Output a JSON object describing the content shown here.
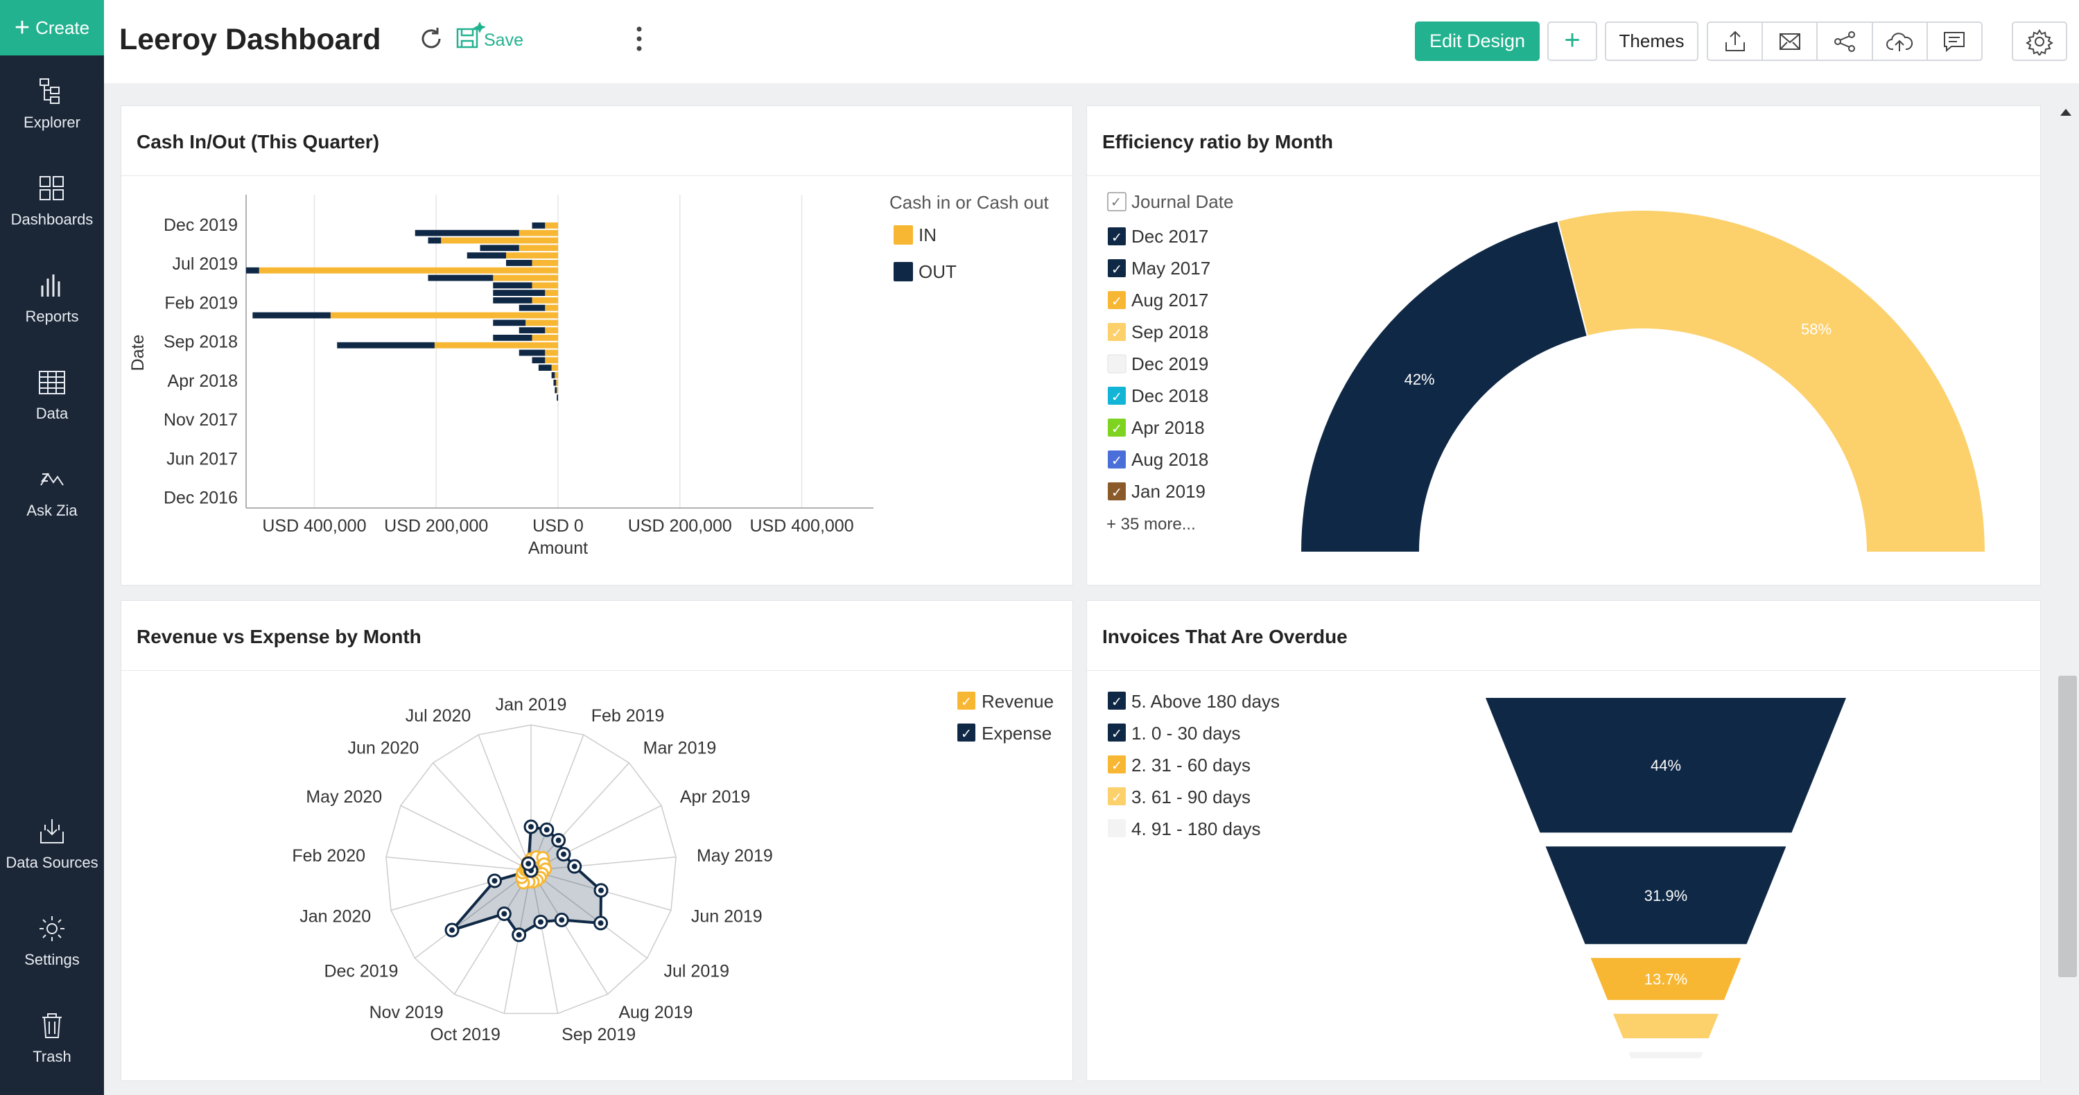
{
  "sidebar": {
    "create_label": "Create",
    "items": [
      {
        "label": "Explorer",
        "icon": "explorer-icon"
      },
      {
        "label": "Dashboards",
        "icon": "dashboards-icon"
      },
      {
        "label": "Reports",
        "icon": "reports-icon"
      },
      {
        "label": "Data",
        "icon": "data-icon"
      },
      {
        "label": "Ask Zia",
        "icon": "ask-zia-icon"
      },
      {
        "label": "Data Sources",
        "icon": "data-sources-icon"
      },
      {
        "label": "Settings",
        "icon": "settings-icon"
      },
      {
        "label": "Trash",
        "icon": "trash-icon"
      }
    ]
  },
  "header": {
    "title": "Leeroy Dashboard",
    "save_label": "Save",
    "edit_design_label": "Edit Design",
    "add_label": "+",
    "themes_label": "Themes",
    "actions": [
      "export-icon",
      "email-icon",
      "share-icon",
      "publish-icon",
      "comment-icon"
    ]
  },
  "colors": {
    "accent": "#22b28f",
    "navy": "#0f2845",
    "gold": "#f7b733",
    "light_gold": "#fcd06b"
  },
  "panels": {
    "cash": {
      "title": "Cash In/Out (This Quarter)"
    },
    "efficiency": {
      "title": "Efficiency ratio by Month"
    },
    "revenue": {
      "title": "Revenue vs Expense by Month"
    },
    "invoices": {
      "title": "Invoices That Are Overdue"
    }
  },
  "chart_data": [
    {
      "id": "cash",
      "type": "bar",
      "orientation": "horizontal",
      "title": "Cash In/Out (This Quarter)",
      "xlabel": "Amount",
      "ylabel": "Date",
      "legend_title": "Cash in or Cash out",
      "legend_position": "right",
      "x_ticks": [
        "USD 400,000",
        "USD 200,000",
        "USD 0",
        "USD 200,000",
        "USD 400,000"
      ],
      "xlim": [
        -480000,
        480000
      ],
      "y_ticks": [
        "Dec 2019",
        "Jul 2019",
        "Feb 2019",
        "Sep 2018",
        "Apr 2018",
        "Nov 2017",
        "Jun 2017",
        "Dec 2016"
      ],
      "series": [
        {
          "name": "IN",
          "color": "#f7b733",
          "values": [
            -20000,
            -60000,
            -180000,
            -60000,
            -80000,
            -40000,
            -460000,
            -100000,
            -40000,
            -20000,
            -40000,
            -20000,
            -350000,
            -50000,
            -20000,
            -40000,
            -190000,
            -20000,
            -20000,
            -10000,
            -5000,
            -3000,
            -2000,
            0
          ]
        },
        {
          "name": "OUT",
          "color": "#0f2845",
          "values": [
            -20000,
            -160000,
            -20000,
            -60000,
            -60000,
            -40000,
            -20000,
            -100000,
            -60000,
            -80000,
            -60000,
            -40000,
            -120000,
            -50000,
            -40000,
            -60000,
            -150000,
            -40000,
            -20000,
            -20000,
            -5000,
            -4000,
            -3000,
            -2000
          ]
        }
      ]
    },
    {
      "id": "efficiency",
      "type": "pie",
      "variant": "semi-donut",
      "title": "Efficiency ratio by Month",
      "legend_title": "Journal Date",
      "legend_position": "left",
      "legend_items": [
        {
          "label": "Dec 2017",
          "color": "#0f2845"
        },
        {
          "label": "May 2017",
          "color": "#0f2845"
        },
        {
          "label": "Aug 2017",
          "color": "#f7b733"
        },
        {
          "label": "Sep 2018",
          "color": "#fcd06b"
        },
        {
          "label": "Dec 2019",
          "color": "#f3f3f3"
        },
        {
          "label": "Dec 2018",
          "color": "#12b5d6"
        },
        {
          "label": "Apr 2018",
          "color": "#7ed321"
        },
        {
          "label": "Aug 2018",
          "color": "#4a6fd8"
        },
        {
          "label": "Jan 2019",
          "color": "#8b5a2b"
        }
      ],
      "more_label": "+ 35 more...",
      "slices": [
        {
          "label": "42%",
          "value": 42,
          "color": "#0f2845"
        },
        {
          "label": "58%",
          "value": 58,
          "color": "#fcd06b"
        }
      ]
    },
    {
      "id": "revenue",
      "type": "radar",
      "title": "Revenue vs Expense by Month",
      "legend_position": "top-right",
      "categories": [
        "Jan 2019",
        "Feb 2019",
        "Mar 2019",
        "Apr 2019",
        "May 2019",
        "Jun 2019",
        "Jul 2019",
        "Aug 2019",
        "Sep 2019",
        "Oct 2019",
        "Nov 2019",
        "Dec 2019",
        "Jan 2020",
        "Feb 2020",
        "May 2020",
        "Jun 2020",
        "Jul 2020"
      ],
      "rmax": 100,
      "series": [
        {
          "name": "Revenue",
          "color": "#f7b733",
          "values": [
            8,
            10,
            12,
            10,
            10,
            8,
            8,
            8,
            8,
            8,
            10,
            8,
            6,
            4,
            4,
            4,
            6
          ]
        },
        {
          "name": "Expense",
          "color": "#0f2845",
          "values": [
            30,
            30,
            28,
            25,
            30,
            50,
            60,
            40,
            36,
            45,
            35,
            68,
            26,
            0,
            0,
            0,
            5
          ]
        }
      ]
    },
    {
      "id": "invoices",
      "type": "funnel",
      "title": "Invoices That Are Overdue",
      "legend_position": "left",
      "categories": [
        "5. Above 180 days",
        "1. 0 - 30 days",
        "2. 31 - 60 days",
        "3. 61 - 90 days",
        "4. 91 - 180 days"
      ],
      "colors": [
        "#0f2845",
        "#0f2845",
        "#f7b733",
        "#fcd06b",
        "#f3f3f3"
      ],
      "legend_colors": [
        "#0f2845",
        "#0f2845",
        "#f7b733",
        "#fcd06b",
        "#f3f3f3"
      ],
      "values": [
        44,
        31.9,
        13.7,
        8,
        2
      ],
      "labels": [
        "44%",
        "31.9%",
        "13.7%",
        "",
        ""
      ]
    }
  ]
}
